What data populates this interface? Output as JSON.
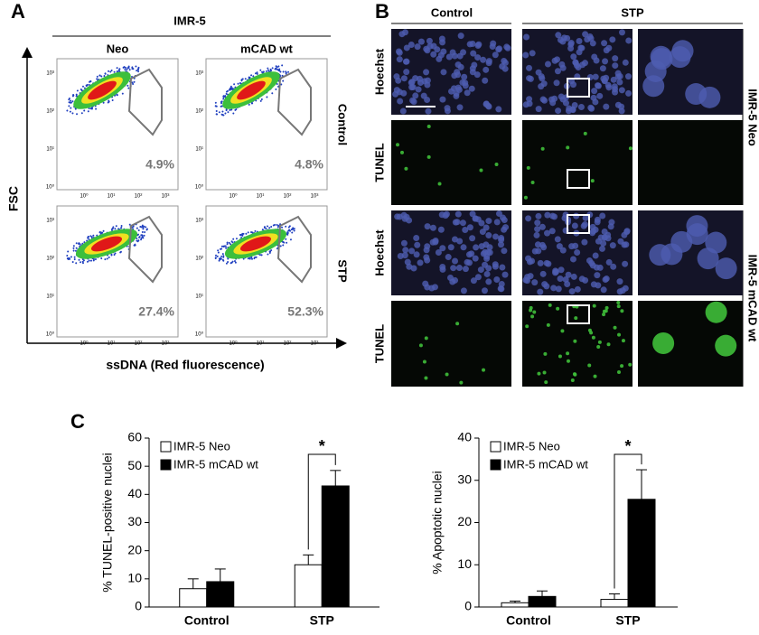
{
  "panel_a": {
    "label": "A",
    "header": "IMR-5",
    "columns": [
      "Neo",
      "mCAD wt"
    ],
    "rows": [
      "Control",
      "STP"
    ],
    "y_axis": "FSC",
    "x_axis": "ssDNA (Red fluorescence)",
    "axis_ticks": [
      "10⁰",
      "10¹",
      "10²",
      "10³"
    ],
    "percentages": [
      [
        "4.9%",
        "4.8%"
      ],
      [
        "27.4%",
        "52.3%"
      ]
    ]
  },
  "panel_b": {
    "label": "B",
    "columns": [
      "Control",
      "STP"
    ],
    "rows": [
      "Hoechst",
      "TUNEL",
      "Hoechst",
      "TUNEL"
    ],
    "groups": [
      "IMR-5 Neo",
      "IMR-5 mCAD wt"
    ]
  },
  "panel_c_label": "C",
  "chart_data": [
    {
      "type": "bar",
      "y_label": "% TUNEL-positive nuclei",
      "categories": [
        "Control",
        "STP"
      ],
      "series": [
        {
          "name": "IMR-5 Neo",
          "color": "#ffffff",
          "values": [
            6.5,
            15
          ],
          "errors": [
            3.5,
            3.5
          ]
        },
        {
          "name": "IMR-5 mCAD wt",
          "color": "#000000",
          "values": [
            9,
            43
          ],
          "errors": [
            4.5,
            5.5
          ]
        }
      ],
      "ylim": [
        0,
        60
      ],
      "yticks": [
        0,
        10,
        20,
        30,
        40,
        50,
        60
      ],
      "annotation": "*"
    },
    {
      "type": "bar",
      "y_label": "% Apoptotic nuclei",
      "categories": [
        "Control",
        "STP"
      ],
      "series": [
        {
          "name": "IMR-5 Neo",
          "color": "#ffffff",
          "values": [
            1,
            1.8
          ],
          "errors": [
            0.4,
            1.3
          ]
        },
        {
          "name": "IMR-5 mCAD wt",
          "color": "#000000",
          "values": [
            2.5,
            25.5
          ],
          "errors": [
            1.3,
            7
          ]
        }
      ],
      "ylim": [
        0,
        40
      ],
      "yticks": [
        0,
        10,
        20,
        30,
        40
      ],
      "annotation": "*"
    }
  ]
}
